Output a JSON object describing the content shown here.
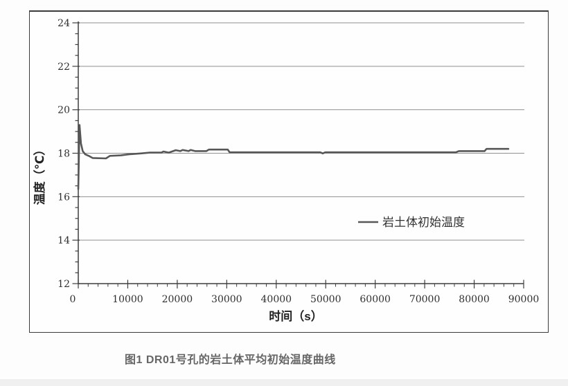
{
  "figure": {
    "caption": "图1 DR01号孔的岩土体平均初始温度曲线"
  },
  "chart_data": {
    "type": "line",
    "title": "",
    "xlabel": "时间（s）",
    "ylabel": "温度（℃）",
    "xlim": [
      0,
      90000
    ],
    "ylim": [
      12,
      24
    ],
    "x_major_tick_step": 10000,
    "x_minor_tick_step": 2000,
    "y_major_tick_step": 2,
    "y_minor_tick_step": 0.5,
    "x_tick_labels": [
      "0",
      "10000",
      "20000",
      "30000",
      "40000",
      "50000",
      "60000",
      "70000",
      "80000",
      "90000"
    ],
    "y_tick_labels": [
      "12",
      "14",
      "16",
      "18",
      "20",
      "22",
      "24"
    ],
    "grid": "horizontal-major",
    "legend": {
      "label": "岩土体初始温度",
      "position": "inside-right-middle"
    },
    "colors": {
      "line": "#575757",
      "grid": "#909090",
      "axis": "#3d3d3d",
      "frame": "#3a3a3a",
      "tick_text": "#2f2f2f",
      "legend_text": "#333333",
      "caption_text": "#666666"
    },
    "series": [
      {
        "name": "岩土体初始温度",
        "points": [
          [
            0,
            16.35
          ],
          [
            250,
            19.3
          ],
          [
            550,
            18.45
          ],
          [
            900,
            18.1
          ],
          [
            1400,
            17.95
          ],
          [
            2200,
            17.87
          ],
          [
            2900,
            17.78
          ],
          [
            5600,
            17.76
          ],
          [
            6400,
            17.88
          ],
          [
            8600,
            17.9
          ],
          [
            10200,
            17.95
          ],
          [
            12600,
            17.99
          ],
          [
            14500,
            18.03
          ],
          [
            16800,
            18.03
          ],
          [
            17200,
            18.08
          ],
          [
            18300,
            18.03
          ],
          [
            19700,
            18.14
          ],
          [
            20600,
            18.1
          ],
          [
            21100,
            18.15
          ],
          [
            22300,
            18.1
          ],
          [
            22700,
            18.15
          ],
          [
            23600,
            18.1
          ],
          [
            25900,
            18.1
          ],
          [
            26400,
            18.17
          ],
          [
            30200,
            18.17
          ],
          [
            30600,
            18.04
          ],
          [
            48900,
            18.04
          ],
          [
            49400,
            17.99
          ],
          [
            49900,
            18.04
          ],
          [
            76300,
            18.04
          ],
          [
            76900,
            18.1
          ],
          [
            82100,
            18.1
          ],
          [
            82500,
            18.2
          ],
          [
            86900,
            18.2
          ]
        ]
      }
    ]
  }
}
